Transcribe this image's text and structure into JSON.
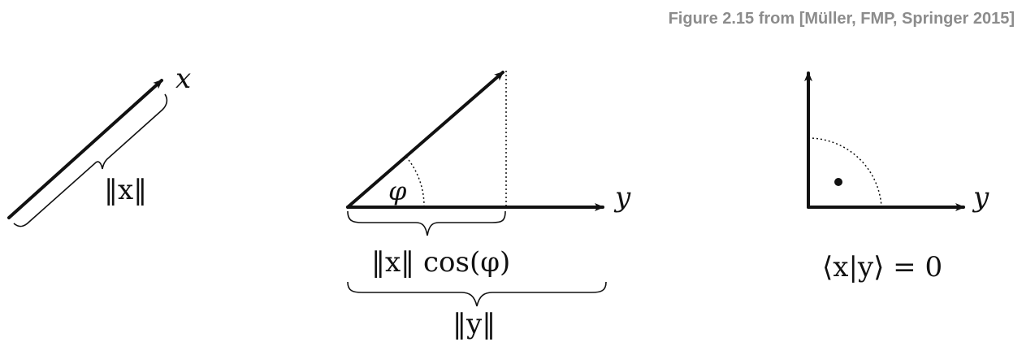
{
  "caption": "Figure 2.15 from [Müller, FMP, Springer 2015]",
  "panel_1": {
    "vector_label": "x",
    "norm_label": "‖x‖"
  },
  "panel_2": {
    "axis_label": "y",
    "angle_label": "φ",
    "projection_label": "‖x‖ cos(φ)",
    "norm_y_label": "‖y‖"
  },
  "panel_3": {
    "axis_label": "y",
    "inner_product_label": "⟨x|y⟩ = 0"
  },
  "colors": {
    "caption": "#8c8c8c",
    "ink": "#111111"
  }
}
